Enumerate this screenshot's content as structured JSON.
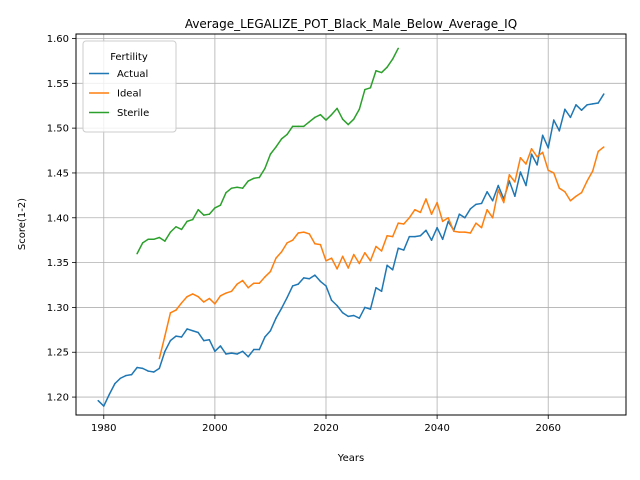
{
  "chart_data": {
    "type": "line",
    "title": "Average_LEGALIZE_POT_Black_Male_Below_Average_IQ",
    "xlabel": "Years",
    "ylabel": "Score(1-2)",
    "xlim": [
      1975,
      2074
    ],
    "ylim": [
      1.18,
      1.605
    ],
    "xticks": [
      1980,
      2000,
      2020,
      2040,
      2060
    ],
    "xtick_labels": [
      "1980",
      "2000",
      "2020",
      "2040",
      "2060"
    ],
    "yticks": [
      1.2,
      1.25,
      1.3,
      1.35,
      1.4,
      1.45,
      1.5,
      1.55,
      1.6
    ],
    "ytick_labels": [
      "1.20",
      "1.25",
      "1.30",
      "1.35",
      "1.40",
      "1.45",
      "1.50",
      "1.55",
      "1.60"
    ],
    "grid": true,
    "legend": {
      "title": "Fertility",
      "position": "top-left"
    },
    "series": [
      {
        "name": "Actual",
        "color": "#1f77b4",
        "x": [
          1979,
          1980,
          1981,
          1982,
          1983,
          1984,
          1985,
          1986,
          1987,
          1988,
          1989,
          1990,
          1991,
          1992,
          1993,
          1994,
          1995,
          1996,
          1997,
          1998,
          1999,
          2000,
          2001,
          2002,
          2003,
          2004,
          2005,
          2006,
          2007,
          2008,
          2009,
          2010,
          2011,
          2012,
          2013,
          2014,
          2015,
          2016,
          2017,
          2018,
          2019,
          2020,
          2021,
          2022,
          2023,
          2024,
          2025,
          2026,
          2027,
          2028,
          2029,
          2030,
          2031,
          2032,
          2033,
          2034,
          2035,
          2036,
          2037,
          2038,
          2039,
          2040,
          2041,
          2042,
          2043,
          2044,
          2045,
          2046,
          2047,
          2048,
          2049,
          2050,
          2051,
          2052,
          2053,
          2054,
          2055,
          2056,
          2057,
          2058,
          2059,
          2060,
          2061,
          2062,
          2063,
          2064,
          2065,
          2066,
          2067,
          2068,
          2069,
          2070
        ],
        "values": [
          1.196,
          1.19,
          1.203,
          1.215,
          1.221,
          1.224,
          1.225,
          1.233,
          1.232,
          1.229,
          1.228,
          1.232,
          1.251,
          1.263,
          1.268,
          1.267,
          1.276,
          1.274,
          1.272,
          1.263,
          1.264,
          1.251,
          1.257,
          1.248,
          1.249,
          1.248,
          1.251,
          1.245,
          1.253,
          1.253,
          1.267,
          1.274,
          1.288,
          1.299,
          1.311,
          1.324,
          1.326,
          1.333,
          1.332,
          1.336,
          1.329,
          1.324,
          1.308,
          1.302,
          1.294,
          1.29,
          1.291,
          1.288,
          1.3,
          1.298,
          1.322,
          1.318,
          1.347,
          1.342,
          1.366,
          1.364,
          1.379,
          1.379,
          1.38,
          1.386,
          1.375,
          1.389,
          1.376,
          1.396,
          1.386,
          1.404,
          1.4,
          1.41,
          1.415,
          1.416,
          1.429,
          1.419,
          1.436,
          1.421,
          1.441,
          1.424,
          1.451,
          1.436,
          1.471,
          1.459,
          1.492,
          1.478,
          1.509,
          1.497,
          1.521,
          1.512,
          1.526,
          1.52,
          1.526,
          1.527,
          1.528,
          1.538
        ]
      },
      {
        "name": "Ideal",
        "color": "#ff7f0e",
        "x": [
          1990,
          1991,
          1992,
          1993,
          1994,
          1995,
          1996,
          1997,
          1998,
          1999,
          2000,
          2001,
          2002,
          2003,
          2004,
          2005,
          2006,
          2007,
          2008,
          2009,
          2010,
          2011,
          2012,
          2013,
          2014,
          2015,
          2016,
          2017,
          2018,
          2019,
          2020,
          2021,
          2022,
          2023,
          2024,
          2025,
          2026,
          2027,
          2028,
          2029,
          2030,
          2031,
          2032,
          2033,
          2034,
          2035,
          2036,
          2037,
          2038,
          2039,
          2040,
          2041,
          2042,
          2043,
          2044,
          2045,
          2046,
          2047,
          2048,
          2049,
          2050,
          2051,
          2052,
          2053,
          2054,
          2055,
          2056,
          2057,
          2058,
          2059,
          2060,
          2061,
          2062,
          2063,
          2064,
          2065,
          2066,
          2067,
          2068,
          2069,
          2070
        ],
        "values": [
          1.243,
          1.268,
          1.294,
          1.297,
          1.305,
          1.312,
          1.315,
          1.312,
          1.306,
          1.31,
          1.304,
          1.313,
          1.316,
          1.318,
          1.326,
          1.33,
          1.322,
          1.327,
          1.327,
          1.334,
          1.34,
          1.355,
          1.362,
          1.372,
          1.375,
          1.383,
          1.384,
          1.382,
          1.371,
          1.37,
          1.352,
          1.355,
          1.343,
          1.357,
          1.344,
          1.359,
          1.349,
          1.361,
          1.352,
          1.368,
          1.363,
          1.38,
          1.379,
          1.394,
          1.393,
          1.4,
          1.409,
          1.406,
          1.421,
          1.404,
          1.417,
          1.396,
          1.4,
          1.385,
          1.384,
          1.384,
          1.383,
          1.394,
          1.389,
          1.409,
          1.4,
          1.431,
          1.417,
          1.448,
          1.44,
          1.467,
          1.46,
          1.477,
          1.468,
          1.473,
          1.453,
          1.45,
          1.433,
          1.429,
          1.419,
          1.424,
          1.428,
          1.441,
          1.452,
          1.474,
          1.479
        ]
      },
      {
        "name": "Sterile",
        "color": "#2ca02c",
        "x": [
          1986,
          1987,
          1988,
          1989,
          1990,
          1991,
          1992,
          1993,
          1994,
          1995,
          1996,
          1997,
          1998,
          1999,
          2000,
          2001,
          2002,
          2003,
          2004,
          2005,
          2006,
          2007,
          2008,
          2009,
          2010,
          2011,
          2012,
          2013,
          2014,
          2015,
          2016,
          2017,
          2018,
          2019,
          2020,
          2021,
          2022,
          2023,
          2024,
          2025,
          2026,
          2027,
          2028,
          2029,
          2030,
          2031,
          2032,
          2033
        ],
        "values": [
          1.36,
          1.372,
          1.376,
          1.376,
          1.378,
          1.374,
          1.384,
          1.39,
          1.387,
          1.396,
          1.398,
          1.409,
          1.403,
          1.404,
          1.411,
          1.414,
          1.428,
          1.433,
          1.434,
          1.433,
          1.441,
          1.444,
          1.445,
          1.455,
          1.471,
          1.479,
          1.488,
          1.493,
          1.502,
          1.502,
          1.502,
          1.507,
          1.512,
          1.515,
          1.509,
          1.515,
          1.522,
          1.51,
          1.504,
          1.51,
          1.521,
          1.543,
          1.545,
          1.564,
          1.562,
          1.568,
          1.577,
          1.589
        ]
      }
    ]
  }
}
